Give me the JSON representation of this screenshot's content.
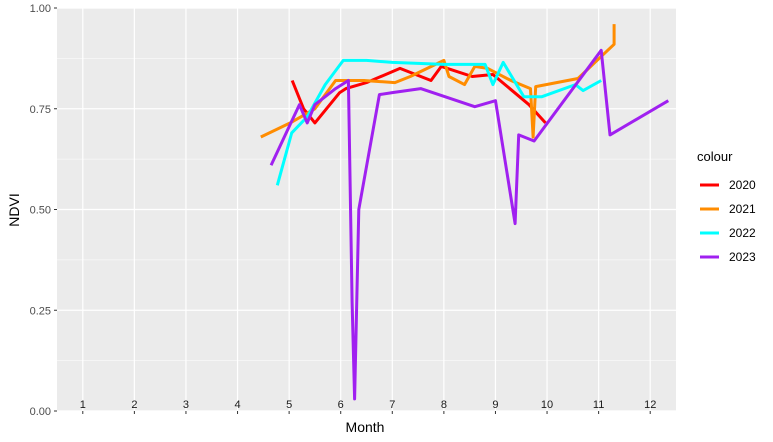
{
  "chart_data": {
    "type": "line",
    "xlabel": "Month",
    "ylabel": "NDVI",
    "xlim": [
      0.5,
      12.5
    ],
    "ylim": [
      0,
      1
    ],
    "y_ticks": [
      "0.00",
      "0.25",
      "0.50",
      "0.75",
      "1.00"
    ],
    "x_tick_labels": [
      "1",
      "2",
      "3",
      "4",
      "5",
      "6",
      "7",
      "8",
      "9",
      "10",
      "11",
      "12"
    ],
    "grid": true,
    "legend": {
      "title": "colour",
      "position": "right"
    },
    "series": [
      {
        "name": "2020",
        "color": "#ff0000",
        "x": [
          5.06,
          5.28,
          5.5,
          5.98,
          6.1,
          6.5,
          7.15,
          7.75,
          7.95,
          8.55,
          8.95,
          9.65,
          9.97
        ],
        "y": [
          0.82,
          0.75,
          0.715,
          0.79,
          0.8,
          0.815,
          0.85,
          0.82,
          0.855,
          0.83,
          0.835,
          0.76,
          0.715
        ]
      },
      {
        "name": "2021",
        "color": "#ff8c00",
        "x": [
          4.45,
          5.02,
          5.5,
          5.9,
          6.45,
          7.05,
          7.35,
          8.0,
          8.1,
          8.4,
          8.6,
          8.85,
          9.3,
          9.68,
          9.73,
          9.78,
          10.6,
          11.05,
          11.3,
          11.3
        ],
        "y": [
          0.68,
          0.715,
          0.75,
          0.82,
          0.82,
          0.815,
          0.83,
          0.87,
          0.83,
          0.81,
          0.855,
          0.85,
          0.82,
          0.8,
          0.68,
          0.805,
          0.825,
          0.88,
          0.91,
          0.96
        ]
      },
      {
        "name": "2022",
        "color": "#00ffff",
        "x": [
          4.77,
          5.05,
          5.35,
          5.7,
          6.05,
          6.5,
          7.0,
          8.0,
          8.8,
          8.95,
          9.15,
          9.55,
          9.9,
          10.55,
          10.7,
          11.05
        ],
        "y": [
          0.56,
          0.69,
          0.73,
          0.81,
          0.87,
          0.87,
          0.865,
          0.86,
          0.86,
          0.81,
          0.865,
          0.78,
          0.78,
          0.81,
          0.795,
          0.82
        ]
      },
      {
        "name": "2023",
        "color": "#a020f0",
        "x": [
          4.65,
          5.2,
          5.35,
          5.5,
          5.9,
          6.15,
          6.22,
          6.27,
          6.35,
          6.75,
          7.0,
          7.55,
          8.6,
          9.0,
          9.38,
          9.45,
          9.75,
          11.05,
          11.22,
          12.35
        ],
        "y": [
          0.61,
          0.76,
          0.715,
          0.76,
          0.8,
          0.82,
          0.27,
          0.03,
          0.5,
          0.785,
          0.79,
          0.8,
          0.755,
          0.77,
          0.465,
          0.685,
          0.67,
          0.895,
          0.685,
          0.77
        ]
      }
    ]
  }
}
